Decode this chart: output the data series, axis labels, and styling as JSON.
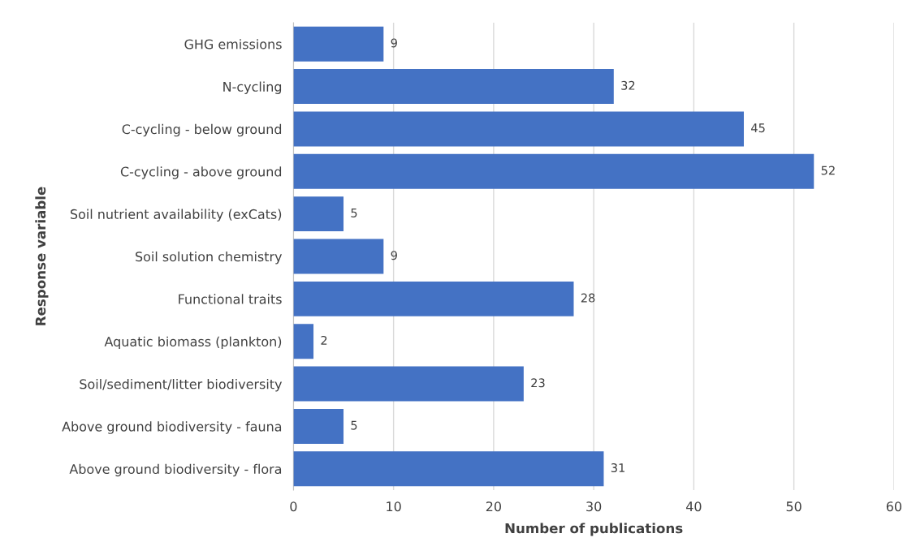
{
  "chart_data": {
    "type": "bar",
    "orientation": "horizontal",
    "xlabel": "Number of publications",
    "ylabel": "Response variable",
    "categories": [
      "GHG emissions",
      "N-cycling",
      "C-cycling - below ground",
      "C-cycling - above ground",
      "Soil nutrient availability (exCats)",
      "Soil solution chemistry",
      "Functional traits",
      "Aquatic biomass (plankton)",
      "Soil/sediment/litter biodiversity",
      "Above ground biodiversity - fauna",
      "Above ground biodiversity - flora"
    ],
    "values": [
      9,
      32,
      45,
      52,
      5,
      9,
      28,
      2,
      23,
      5,
      31
    ],
    "color": "#4472c4",
    "xlim": [
      0,
      60
    ],
    "xticks": [
      0,
      10,
      20,
      30,
      40,
      50,
      60
    ],
    "grid": "x",
    "data_labels": true
  }
}
